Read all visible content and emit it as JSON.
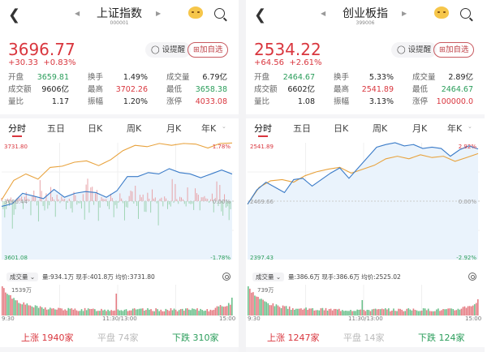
{
  "colors": {
    "up": "#d9363e",
    "down": "#2a9d5a",
    "price_line": "#3a7bc8",
    "avg_line": "#e8a23c",
    "fill": "#eaf3fc"
  },
  "icons": {
    "back": "chevron-left-icon",
    "prev": "triangle-left-icon",
    "next": "triangle-right-icon",
    "mascot": "mascot-icon",
    "search": "search-icon",
    "bell": "bell-icon",
    "add": "plus-square-icon",
    "gear": "settings-icon"
  },
  "panels": [
    {
      "title": "上证指数",
      "code": "000001",
      "price": "3696.77",
      "change": "+30.33",
      "change_pct": "+0.83%",
      "alert_label": "设提醒",
      "fav_label": "加自选",
      "stats": [
        [
          {
            "label": "开盘",
            "value": "3659.81",
            "tone": "green"
          },
          {
            "label": "换手",
            "value": "1.49%",
            "tone": "dark"
          },
          {
            "label": "成交量",
            "value": "6.79亿",
            "tone": "dark"
          }
        ],
        [
          {
            "label": "成交额",
            "value": "9606亿",
            "tone": "dark"
          },
          {
            "label": "最高",
            "value": "3702.26",
            "tone": "red"
          },
          {
            "label": "最低",
            "value": "3658.38",
            "tone": "green"
          }
        ],
        [
          {
            "label": "量比",
            "value": "1.17",
            "tone": "dark"
          },
          {
            "label": "振幅",
            "value": "1.20%",
            "tone": "dark"
          },
          {
            "label": "涨停",
            "value": "4033.08",
            "tone": "red"
          }
        ]
      ],
      "tabs": [
        "分时",
        "五日",
        "日K",
        "周K",
        "月K",
        "年K"
      ],
      "active_tab": 0,
      "volume": {
        "selector": "成交量",
        "summary": "量:934.1万  现手:401.8万  均价:3731.80",
        "max_label": "1539万"
      },
      "time_labels": [
        "9:30",
        "11:30/13:00",
        "15:00"
      ],
      "advance": {
        "label": "上涨",
        "value": "1940家"
      },
      "flat": {
        "label": "平盘",
        "value": "74家"
      },
      "decline": {
        "label": "下跌",
        "value": "310家"
      },
      "chart_data": {
        "type": "line",
        "x_range": [
          "9:30",
          "15:00"
        ],
        "ylim": [
          3601.08,
          3731.8
        ],
        "prev_close": 3666.44,
        "y_labels": {
          "top": "3731.80",
          "mid": "3666.44",
          "bottom": "3601.08",
          "top_pct": "1.78%",
          "mid_pct": "0.00%",
          "bottom_pct": "-1.78%"
        },
        "series": [
          {
            "values": [
              3660.6,
              3663.5,
              3675.2,
              3672.3,
              3669.3,
              3679.5,
              3670.8,
              3675.2,
              3677.2,
              3676.0,
              3670.8,
              3678.0,
              3694.0,
              3694.0,
              3698.4,
              3696.9,
              3702.8,
              3698.4,
              3696.9,
              3692.6,
              3696.9,
              3701.3,
              3696.8
            ]
          },
          {
            "values": [
              3667.9,
              3689.7,
              3696.9,
              3691.1,
              3704.2,
              3705.6,
              3710.0,
              3711.5,
              3706.2,
              3712.9,
              3723.0,
              3728.9,
              3727.4,
              3731.0,
              3728.9,
              3731.0,
              3730.3,
              3725.9,
              3731.0,
              3731.5
            ]
          }
        ]
      }
    },
    {
      "title": "创业板指",
      "code": "399006",
      "price": "2534.22",
      "change": "+64.56",
      "change_pct": "+2.61%",
      "alert_label": "设提醒",
      "fav_label": "加自选",
      "stats": [
        [
          {
            "label": "开盘",
            "value": "2464.67",
            "tone": "green"
          },
          {
            "label": "换手",
            "value": "5.33%",
            "tone": "dark"
          },
          {
            "label": "成交量",
            "value": "2.89亿",
            "tone": "dark"
          }
        ],
        [
          {
            "label": "成交额",
            "value": "6602亿",
            "tone": "dark"
          },
          {
            "label": "最高",
            "value": "2541.89",
            "tone": "red"
          },
          {
            "label": "最低",
            "value": "2464.67",
            "tone": "green"
          }
        ],
        [
          {
            "label": "量比",
            "value": "1.08",
            "tone": "dark"
          },
          {
            "label": "振幅",
            "value": "3.13%",
            "tone": "dark"
          },
          {
            "label": "涨停",
            "value": "100000.0",
            "tone": "red"
          }
        ]
      ],
      "tabs": [
        "分时",
        "五日",
        "日K",
        "周K",
        "月K",
        "年K"
      ],
      "active_tab": 0,
      "volume": {
        "selector": "成交量",
        "summary": "量:386.6万  现手:386.6万  均价:2525.02",
        "max_label": "739万"
      },
      "time_labels": [
        "9:30",
        "11:30/13:00",
        "15:00"
      ],
      "advance": {
        "label": "上涨",
        "value": "1247家"
      },
      "flat": {
        "label": "平盘",
        "value": "14家"
      },
      "decline": {
        "label": "下跌",
        "value": "124家"
      },
      "chart_data": {
        "type": "line",
        "x_range": [
          "9:30",
          "15:00"
        ],
        "ylim": [
          2397.43,
          2541.89
        ],
        "prev_close": 2469.66,
        "y_labels": {
          "top": "2541.89",
          "mid": "2469.66",
          "bottom": "2397.43",
          "top_pct": "2.92%",
          "mid_pct": "0.00%",
          "bottom_pct": "-2.92%"
        },
        "series": [
          {
            "values": [
              2465.8,
              2483.4,
              2493.1,
              2486.7,
              2480.3,
              2496.3,
              2497.9,
              2488.3,
              2496.3,
              2504.3,
              2510.8,
              2497.9,
              2510.8,
              2523.6,
              2536.4,
              2539.7,
              2541.9,
              2538.0,
              2539.7,
              2534.8,
              2536.4,
              2534.8,
              2525.2,
              2533.2,
              2538.0,
              2534.2
            ]
          },
          {
            "values": [
              2465.8,
              2486.7,
              2494.8,
              2496.3,
              2493.1,
              2501.2,
              2506.0,
              2509.2,
              2511.5,
              2504.3,
              2509.2,
              2514.0,
              2522.0,
              2525.2,
              2522.0,
              2527.0,
              2523.6,
              2525.2,
              2518.9,
              2523.6,
              2528.5
            ]
          }
        ]
      }
    }
  ]
}
